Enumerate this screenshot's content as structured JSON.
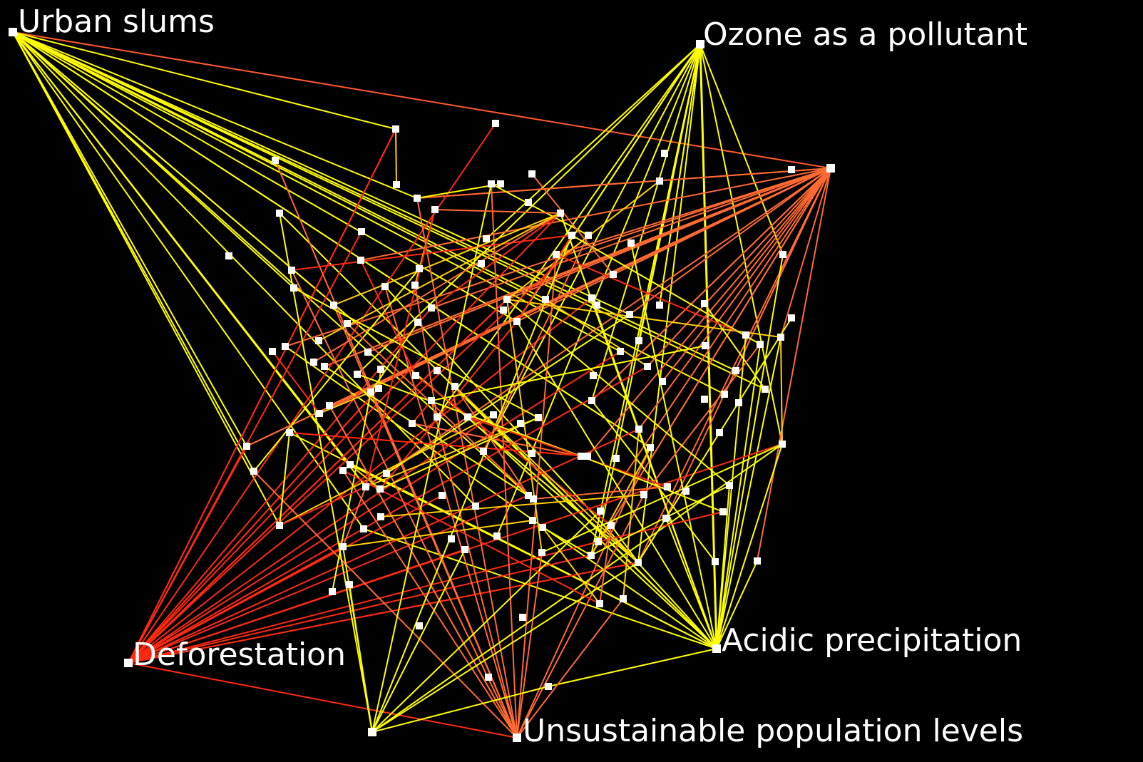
{
  "nodes": [
    {
      "label": "Urban slums"
    },
    {
      "label": "Ozone as a pollutant"
    },
    {
      "label": "Acidic precipitation"
    },
    {
      "label": "Deforestation"
    },
    {
      "label": "Unsustainable population levels"
    }
  ]
}
